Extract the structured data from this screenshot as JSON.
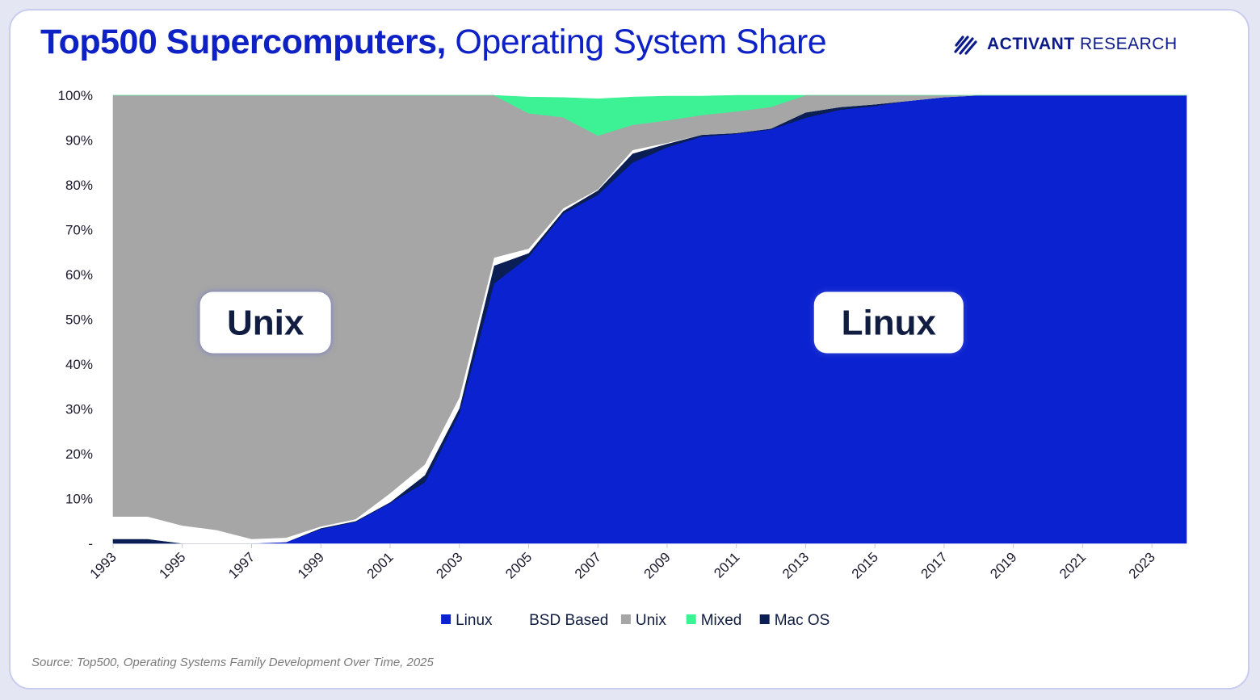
{
  "header": {
    "title_bold": "Top500 Supercomputers,",
    "title_regular": " Operating System Share",
    "brand_bold": "ACTIVANT",
    "brand_regular": " RESEARCH",
    "brand_icon": "activant-stripes-icon"
  },
  "chart_data": {
    "type": "area",
    "stacked": true,
    "x": [
      1993,
      1994,
      1995,
      1996,
      1997,
      1998,
      1999,
      2000,
      2001,
      2002,
      2003,
      2004,
      2005,
      2006,
      2007,
      2008,
      2009,
      2010,
      2011,
      2012,
      2013,
      2014,
      2015,
      2016,
      2017,
      2018,
      2019,
      2020,
      2021,
      2022,
      2023,
      2024
    ],
    "x_tick_labels": [
      "1993",
      "1995",
      "1997",
      "1999",
      "2001",
      "2003",
      "2005",
      "2007",
      "2009",
      "2011",
      "2013",
      "2015",
      "2017",
      "2019",
      "2021",
      "2023"
    ],
    "y_tick_labels": [
      "-",
      "10%",
      "20%",
      "30%",
      "40%",
      "50%",
      "60%",
      "70%",
      "80%",
      "90%",
      "100%"
    ],
    "ylim": [
      0,
      100
    ],
    "series": [
      {
        "name": "Linux",
        "color": "#0a22d0",
        "values": [
          0,
          0,
          0,
          0,
          0,
          0.3,
          3.2,
          4.8,
          9,
          13.6,
          29,
          58,
          64,
          73.6,
          77.8,
          85,
          88.4,
          90.8,
          91.4,
          92.4,
          95,
          96.8,
          97.6,
          98.8,
          99.6,
          100,
          100,
          100,
          100,
          100,
          100,
          100
        ]
      },
      {
        "name": "Mac OS",
        "color": "#0b1f55",
        "values": [
          1,
          1,
          0,
          0,
          0,
          0,
          0.2,
          0.2,
          0.2,
          1.6,
          1.2,
          4,
          0.8,
          0.6,
          1,
          2,
          0.8,
          0.4,
          0.2,
          0.2,
          1.2,
          0.6,
          0.4,
          0,
          0,
          0,
          0,
          0,
          0,
          0,
          0,
          0
        ]
      },
      {
        "name": "BSD Based",
        "color": "#ffffff",
        "values": [
          5,
          5,
          4,
          3,
          1,
          1,
          0.4,
          0.4,
          2,
          2.4,
          2.4,
          1.8,
          1,
          0.6,
          0.2,
          0.8,
          0.2,
          0,
          0,
          0,
          0,
          0,
          0,
          0,
          0,
          0,
          0,
          0,
          0,
          0,
          0,
          0
        ]
      },
      {
        "name": "Unix",
        "color": "#a6a6a6",
        "values": [
          94,
          94,
          96,
          97,
          99,
          98.7,
          96.2,
          94.6,
          88.8,
          82.4,
          67.4,
          36.2,
          30.2,
          20.3,
          12,
          5.6,
          5,
          4.4,
          4.8,
          4.8,
          3.8,
          2.6,
          2,
          1.2,
          0.4,
          0,
          0,
          0,
          0,
          0,
          0,
          0
        ]
      },
      {
        "name": "Mixed",
        "color": "#3cf294",
        "values": [
          0,
          0,
          0,
          0,
          0,
          0,
          0,
          0,
          0,
          0,
          0,
          0,
          3.6,
          4.4,
          8.2,
          6.2,
          5.4,
          4.2,
          3.6,
          2.6,
          0,
          0,
          0,
          0,
          0,
          0,
          0,
          0,
          0,
          0,
          0,
          0
        ]
      }
    ],
    "legend": {
      "position": "bottom",
      "items": [
        {
          "label": "Linux",
          "color": "#0a22d0"
        },
        {
          "label": "BSD Based",
          "color": "#ffffff"
        },
        {
          "label": "Unix",
          "color": "#a6a6a6"
        },
        {
          "label": "Mixed",
          "color": "#3cf294"
        },
        {
          "label": "Mac OS",
          "color": "#0b1f55"
        }
      ]
    },
    "annotations": [
      {
        "label": "Unix",
        "x": 1997.4,
        "y": 50
      },
      {
        "label": "Linux",
        "x": 2015.4,
        "y": 50
      }
    ]
  },
  "footer": {
    "source": "Source: Top500, Operating Systems Family Development Over Time, 2025"
  }
}
